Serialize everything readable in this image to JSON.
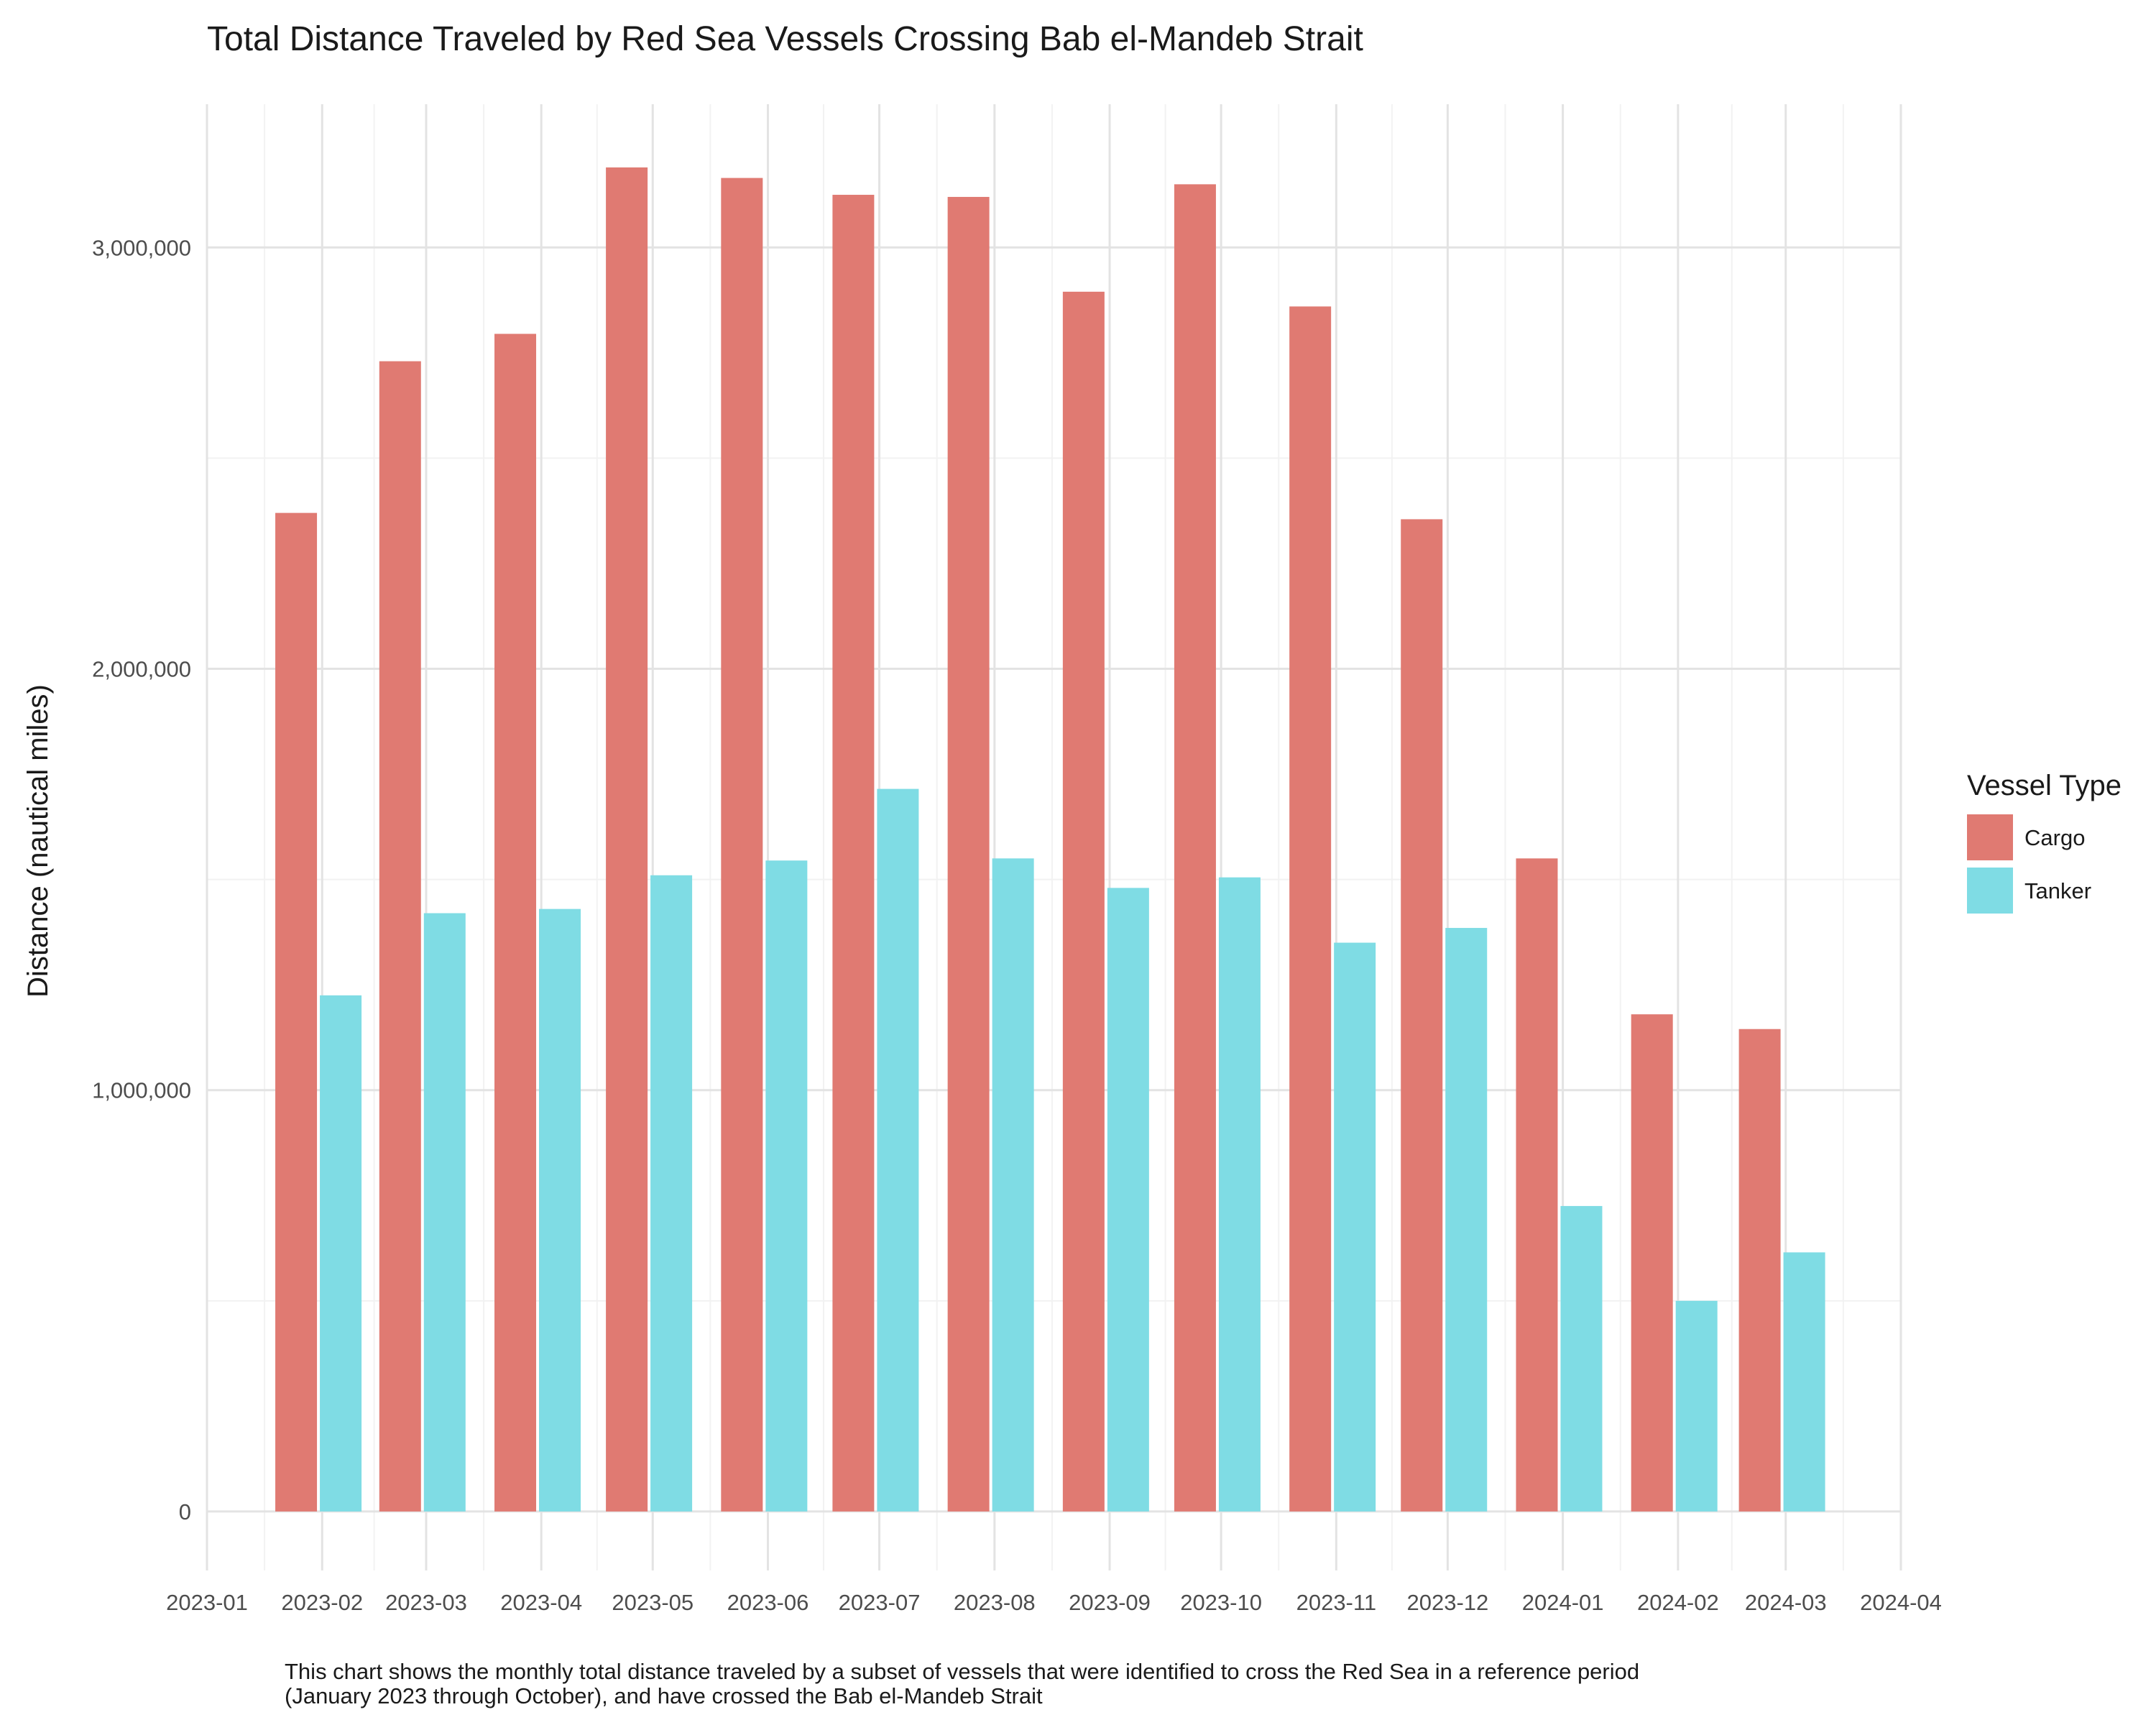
{
  "chart_data": {
    "type": "bar",
    "title": "Total Distance Traveled by Red Sea Vessels Crossing Bab el-Mandeb Strait",
    "xlabel": "",
    "ylabel": "Distance (nautical miles)",
    "caption_lines": [
      "This chart shows the monthly total distance traveled by a subset of vessels that were identified to cross the Red Sea in a reference period",
      "(January 2023 through October), and have crossed the Bab el-Mandeb Strait"
    ],
    "x_axis": {
      "type": "date",
      "range": [
        "2023-01-01",
        "2024-04-01"
      ],
      "ticks": [
        "2023-01",
        "2023-02",
        "2023-03",
        "2023-04",
        "2023-05",
        "2023-06",
        "2023-07",
        "2023-08",
        "2023-09",
        "2023-10",
        "2023-11",
        "2023-12",
        "2024-01",
        "2024-02",
        "2024-03",
        "2024-04"
      ]
    },
    "categories": [
      "2023-01-31",
      "2023-02-28",
      "2023-03-31",
      "2023-04-30",
      "2023-05-31",
      "2023-06-30",
      "2023-07-31",
      "2023-08-31",
      "2023-09-30",
      "2023-10-31",
      "2023-11-30",
      "2023-12-31",
      "2024-01-31",
      "2024-02-29"
    ],
    "series": [
      {
        "name": "Cargo",
        "color": "#E07A72",
        "values": [
          2370000,
          2730000,
          2795000,
          3190000,
          3165000,
          3125000,
          3120000,
          2895000,
          3150000,
          2860000,
          2355000,
          1550000,
          1180000,
          1145000
        ]
      },
      {
        "name": "Tanker",
        "color": "#7FDCE4",
        "values": [
          1225000,
          1420000,
          1430000,
          1510000,
          1545000,
          1715000,
          1550000,
          1480000,
          1505000,
          1350000,
          1385000,
          725000,
          500000,
          615000
        ]
      }
    ],
    "y_axis": {
      "ylim": [
        -140000,
        3340000
      ],
      "ticks": [
        0,
        1000000,
        2000000,
        3000000
      ],
      "tick_labels": [
        "0",
        "1,000,000",
        "2,000,000",
        "3,000,000"
      ]
    },
    "legend": {
      "title": "Vessel Type",
      "position": "right"
    },
    "grid": true
  }
}
